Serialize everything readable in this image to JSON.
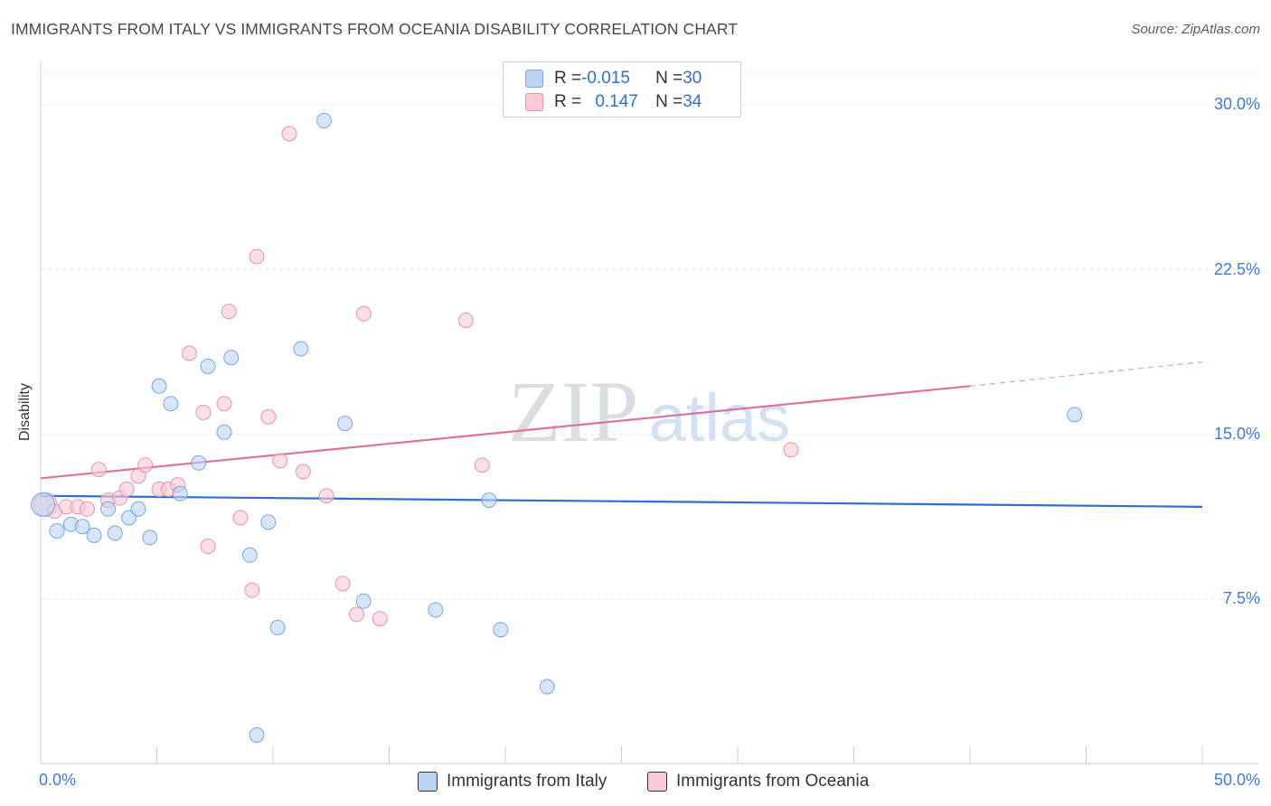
{
  "header": {
    "title": "IMMIGRANTS FROM ITALY VS IMMIGRANTS FROM OCEANIA DISABILITY CORRELATION CHART",
    "source": "Source: ZipAtlas.com"
  },
  "watermark": {
    "zip": "ZIP",
    "atlas": "atlas"
  },
  "legend": {
    "rows": [
      {
        "r_label": "R = ",
        "r_value": "-0.015",
        "n_label": "N = ",
        "n_value": "30"
      },
      {
        "r_label": "R = ",
        "r_value": "0.147",
        "n_label": "N = ",
        "n_value": "34"
      }
    ]
  },
  "colors": {
    "italy_fill": "#bcd3f4",
    "italy_stroke": "#7aa6e0",
    "italy_line": "#2f6fce",
    "oceania_fill": "#f8cad6",
    "oceania_stroke": "#ea93ab",
    "oceania_line": "#e0719a"
  },
  "chart_data": {
    "type": "scatter",
    "title": "IMMIGRANTS FROM ITALY VS IMMIGRANTS FROM OCEANIA DISABILITY CORRELATION CHART",
    "xlabel": "",
    "ylabel": "Disability",
    "xlim": [
      0,
      50
    ],
    "ylim": [
      0,
      31.5
    ],
    "x_ticks": [
      0,
      5,
      10,
      15,
      20,
      25,
      30,
      35,
      40,
      45,
      50
    ],
    "x_tick_labels": {
      "first": "0.0%",
      "last": "50.0%"
    },
    "y_ticks": [
      7.5,
      15.0,
      22.5,
      30.0
    ],
    "y_tick_labels": [
      "7.5%",
      "15.0%",
      "22.5%",
      "30.0%"
    ],
    "legend": [
      "Immigrants from Italy",
      "Immigrants from Oceania"
    ],
    "series": [
      {
        "name": "Immigrants from Italy",
        "R": -0.015,
        "N": 30,
        "trend": {
          "x0": 0,
          "y0": 12.2,
          "x1": 50,
          "y1": 11.7
        },
        "points": [
          [
            0.1,
            11.8,
            3
          ],
          [
            0.7,
            10.6,
            1
          ],
          [
            1.3,
            10.9,
            1
          ],
          [
            1.8,
            10.8,
            1
          ],
          [
            2.3,
            10.4,
            1
          ],
          [
            2.9,
            11.6,
            1
          ],
          [
            3.2,
            10.5,
            1
          ],
          [
            3.8,
            11.2,
            1
          ],
          [
            4.2,
            11.6,
            1
          ],
          [
            4.7,
            10.3,
            1
          ],
          [
            5.1,
            17.2,
            1
          ],
          [
            5.6,
            16.4,
            1
          ],
          [
            6.0,
            12.3,
            1
          ],
          [
            6.8,
            13.7,
            1
          ],
          [
            7.2,
            18.1,
            1
          ],
          [
            7.9,
            15.1,
            1
          ],
          [
            8.2,
            18.5,
            1
          ],
          [
            9.0,
            9.5,
            1
          ],
          [
            9.3,
            1.3,
            1
          ],
          [
            9.8,
            11.0,
            1
          ],
          [
            10.2,
            6.2,
            1
          ],
          [
            11.2,
            18.9,
            1
          ],
          [
            12.2,
            29.3,
            1
          ],
          [
            13.1,
            15.5,
            1
          ],
          [
            13.9,
            7.4,
            1
          ],
          [
            17.0,
            7.0,
            1
          ],
          [
            19.3,
            12.0,
            1
          ],
          [
            19.8,
            6.1,
            1
          ],
          [
            21.8,
            3.5,
            1
          ],
          [
            44.5,
            15.9,
            1
          ]
        ]
      },
      {
        "name": "Immigrants from Oceania",
        "R": 0.147,
        "N": 34,
        "trend": {
          "x0": 0,
          "y0": 13.0,
          "x1": 40,
          "y1": 17.2,
          "dash_to_x": 50,
          "dash_to_y": 18.3
        },
        "points": [
          [
            0.2,
            11.8,
            3
          ],
          [
            0.6,
            11.5,
            1
          ],
          [
            1.1,
            11.7,
            1
          ],
          [
            1.6,
            11.7,
            1
          ],
          [
            2.0,
            11.6,
            1
          ],
          [
            2.5,
            13.4,
            1
          ],
          [
            2.9,
            12.0,
            1
          ],
          [
            3.4,
            12.1,
            1
          ],
          [
            3.7,
            12.5,
            1
          ],
          [
            4.2,
            13.1,
            1
          ],
          [
            4.5,
            13.6,
            1
          ],
          [
            5.1,
            12.5,
            1
          ],
          [
            5.5,
            12.5,
            1
          ],
          [
            5.9,
            12.7,
            1
          ],
          [
            6.4,
            18.7,
            1
          ],
          [
            7.0,
            16.0,
            1
          ],
          [
            7.2,
            9.9,
            1
          ],
          [
            7.9,
            16.4,
            1
          ],
          [
            8.1,
            20.6,
            1
          ],
          [
            8.6,
            11.2,
            1
          ],
          [
            9.1,
            7.9,
            1
          ],
          [
            9.3,
            23.1,
            1
          ],
          [
            9.8,
            15.8,
            1
          ],
          [
            10.3,
            13.8,
            1
          ],
          [
            10.7,
            28.7,
            1
          ],
          [
            11.3,
            13.3,
            1
          ],
          [
            12.3,
            12.2,
            1
          ],
          [
            13.0,
            8.2,
            1
          ],
          [
            13.6,
            6.8,
            1
          ],
          [
            13.9,
            20.5,
            1
          ],
          [
            14.6,
            6.6,
            1
          ],
          [
            18.3,
            20.2,
            1
          ],
          [
            19.0,
            13.6,
            1
          ],
          [
            32.3,
            14.3,
            1
          ]
        ]
      }
    ]
  }
}
